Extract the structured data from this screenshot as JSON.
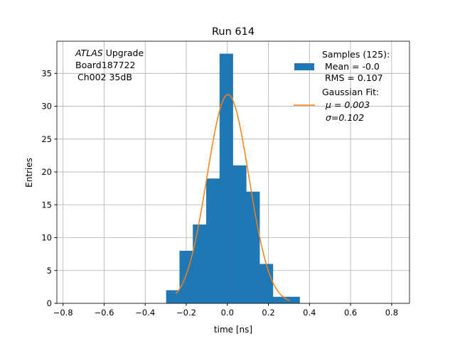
{
  "chart_data": {
    "type": "bar",
    "title": "Run 614",
    "xlabel": "time [ns]",
    "ylabel": "Entries",
    "xlim": [
      -0.83,
      0.887
    ],
    "ylim": [
      0,
      39.9
    ],
    "grid": true,
    "xticks": [
      -0.8,
      -0.6,
      -0.4,
      -0.2,
      0.0,
      0.2,
      0.4,
      0.6,
      0.8
    ],
    "xtick_labels": [
      "−0.8",
      "−0.6",
      "−0.4",
      "−0.2",
      "0.0",
      "0.2",
      "0.4",
      "0.6",
      "0.8"
    ],
    "yticks": [
      0,
      5,
      10,
      15,
      20,
      25,
      30,
      35
    ],
    "ytick_labels": [
      "0",
      "5",
      "10",
      "15",
      "20",
      "25",
      "30",
      "35"
    ],
    "bin_edges": [
      -0.298,
      -0.233,
      -0.168,
      -0.103,
      -0.038,
      0.027,
      0.092,
      0.157,
      0.222,
      0.287,
      0.352
    ],
    "counts": [
      2,
      8,
      12,
      19,
      38,
      21,
      17,
      6,
      1,
      1
    ],
    "fit": {
      "mu": 0.003,
      "sigma": 0.102,
      "n": 125,
      "x_range": [
        -0.25,
        0.305
      ]
    },
    "colors": {
      "hist": "#1f77b4",
      "fit": "#ff7f0e",
      "grid": "#b0b0b0"
    },
    "annotation": [
      "ATLAS",
      "Upgrade",
      "Board187722",
      "Ch002 35dB"
    ],
    "legend": {
      "placement": "top-right",
      "hist_lines": [
        "Samples (125):",
        " Mean = -0.0",
        " RMS = 0.107"
      ],
      "fit_lines": [
        "Gaussian Fit:",
        "μ = 0.003",
        "σ=0.102"
      ]
    }
  }
}
